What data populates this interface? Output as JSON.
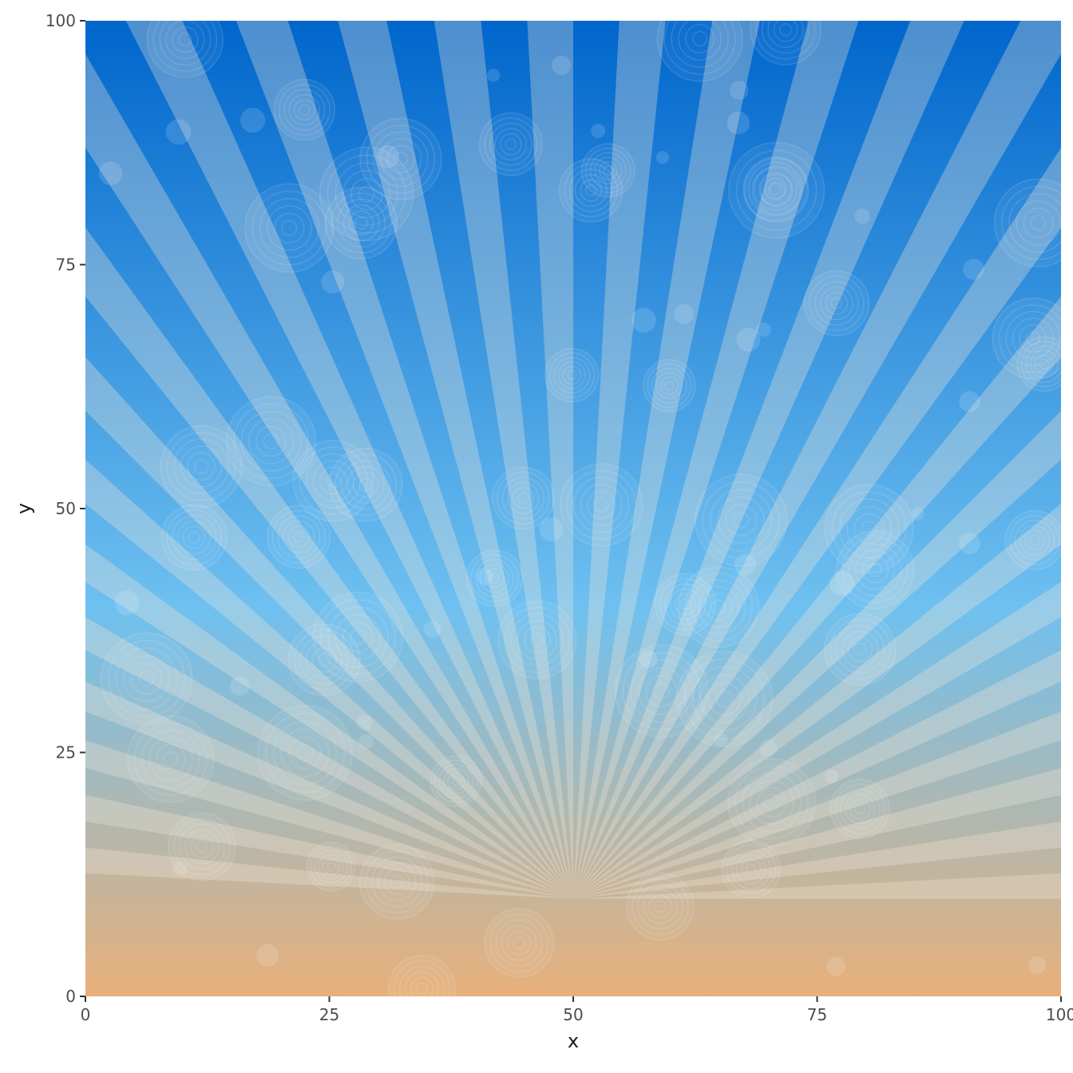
{
  "chart_data": {
    "type": "area",
    "title": "",
    "xlabel": "x",
    "ylabel": "y",
    "xlim": [
      0,
      100
    ],
    "ylim": [
      0,
      100
    ],
    "x_ticks": [
      0,
      25,
      50,
      75,
      100
    ],
    "y_ticks": [
      0,
      25,
      50,
      75,
      100
    ],
    "x_tick_labels": [
      "0",
      "25",
      "50",
      "75",
      "100"
    ],
    "y_tick_labels": [
      "0",
      "25",
      "50",
      "75",
      "100"
    ],
    "grid": false,
    "background_gradient": {
      "top_color": "#0066cc",
      "mid_color": "#6ec0f0",
      "bottom_color": "#e8b07a"
    },
    "rays": {
      "origin": [
        50,
        10
      ],
      "count": 60,
      "color": "#f2e6d6"
    },
    "bokeh_circles": {
      "count": 90,
      "color": "#ffffff"
    }
  }
}
